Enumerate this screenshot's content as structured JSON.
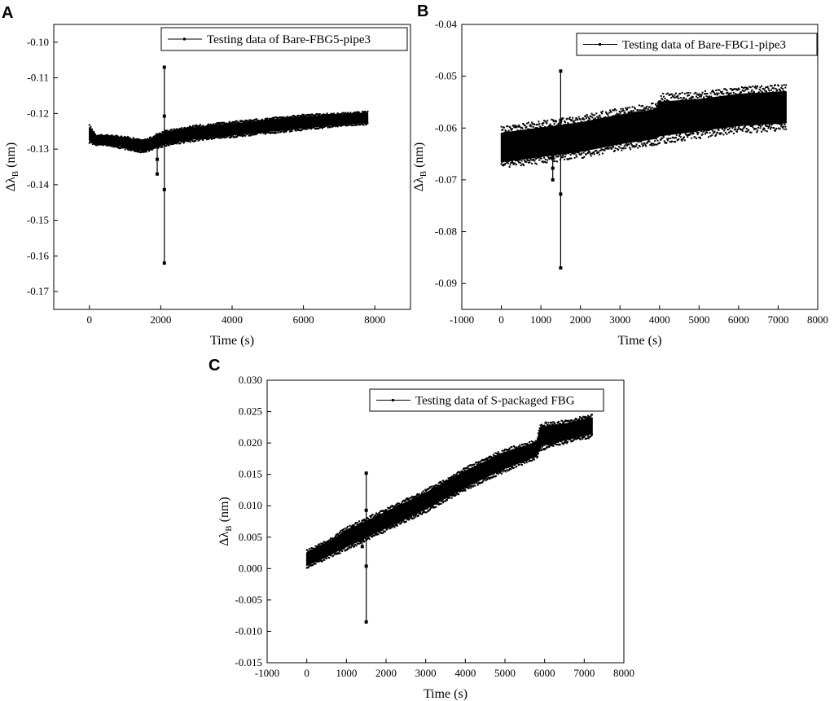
{
  "chart_data": [
    {
      "panel": "A",
      "type": "line",
      "xlabel": "Time (s)",
      "ylabel": "Δλ",
      "ylabel_sub": "B",
      "ylabel_unit": " (nm)",
      "xlim": [
        -1000,
        9000
      ],
      "ylim": [
        -0.175,
        -0.095
      ],
      "xticks": [
        0,
        2000,
        4000,
        6000,
        8000
      ],
      "yticks": [
        -0.17,
        -0.16,
        -0.15,
        -0.14,
        -0.13,
        -0.12,
        -0.11,
        -0.1
      ],
      "ytick_labels": [
        "-0.17",
        "-0.16",
        "-0.15",
        "-0.14",
        "-0.13",
        "-0.12",
        "-0.11",
        "-0.10"
      ],
      "legend_position": "top-right",
      "series": [
        {
          "name": "Testing data of Bare-FBG5-pipe3",
          "band": {
            "x": [
              0,
              200,
              500,
              1000,
              1500,
              1800,
              2100,
              3000,
              4000,
              5000,
              6000,
              7000,
              7800
            ],
            "low": [
              -0.1275,
              -0.1285,
              -0.1285,
              -0.1295,
              -0.1305,
              -0.1295,
              -0.1285,
              -0.127,
              -0.126,
              -0.125,
              -0.124,
              -0.123,
              -0.1225
            ],
            "high": [
              -0.124,
              -0.1265,
              -0.1265,
              -0.127,
              -0.128,
              -0.127,
              -0.1255,
              -0.124,
              -0.123,
              -0.122,
              -0.121,
              -0.1205,
              -0.12
            ]
          },
          "spikes": [
            {
              "x": 2100,
              "ymin": -0.162,
              "ymax": -0.107
            },
            {
              "x": 1900,
              "ymin": -0.137,
              "ymax": -0.126
            }
          ]
        }
      ]
    },
    {
      "panel": "B",
      "type": "line",
      "xlabel": "Time (s)",
      "ylabel": "Δλ",
      "ylabel_sub": "B",
      "ylabel_unit": " (nm)",
      "xlim": [
        -1000,
        8000
      ],
      "ylim": [
        -0.095,
        -0.04
      ],
      "xticks": [
        -1000,
        0,
        1000,
        2000,
        3000,
        4000,
        5000,
        6000,
        7000,
        8000
      ],
      "yticks": [
        -0.09,
        -0.08,
        -0.07,
        -0.06,
        -0.05,
        -0.04
      ],
      "ytick_labels": [
        "-0.09",
        "-0.08",
        "-0.07",
        "-0.06",
        "-0.05",
        "-0.04"
      ],
      "legend_position": "top-right",
      "series": [
        {
          "name": "Testing data of Bare-FBG1-pipe3",
          "band": {
            "x": [
              0,
              1000,
              2000,
              3000,
              3900,
              4000,
              5000,
              6000,
              7200
            ],
            "low": [
              -0.0665,
              -0.0655,
              -0.0645,
              -0.063,
              -0.062,
              -0.0615,
              -0.0605,
              -0.0595,
              -0.059
            ],
            "high": [
              -0.061,
              -0.06,
              -0.059,
              -0.0575,
              -0.0565,
              -0.055,
              -0.0545,
              -0.0535,
              -0.053
            ]
          },
          "spikes": [
            {
              "x": 1500,
              "ymin": -0.087,
              "ymax": -0.049
            },
            {
              "x": 1300,
              "ymin": -0.07,
              "ymax": -0.064
            }
          ]
        }
      ]
    },
    {
      "panel": "C",
      "type": "line",
      "xlabel": "Time (s)",
      "ylabel": "Δλ",
      "ylabel_sub": "B",
      "ylabel_unit": " (nm)",
      "xlim": [
        -1000,
        8000
      ],
      "ylim": [
        -0.015,
        0.03
      ],
      "xticks": [
        -1000,
        0,
        1000,
        2000,
        3000,
        4000,
        5000,
        6000,
        7000,
        8000
      ],
      "yticks": [
        -0.015,
        -0.01,
        -0.005,
        0,
        0.005,
        0.01,
        0.015,
        0.02,
        0.025,
        0.03
      ],
      "ytick_labels": [
        "-0.015",
        "-0.010",
        "-0.005",
        "0.000",
        "0.005",
        "0.010",
        "0.015",
        "0.020",
        "0.025",
        "0.030"
      ],
      "legend_position": "top-right",
      "series": [
        {
          "name": "Testing data of S-packaged FBG",
          "band": {
            "x": [
              0,
              500,
              1000,
              1500,
              2000,
              3000,
              4000,
              5000,
              5800,
              5900,
              6500,
              7200
            ],
            "low": [
              0.0005,
              0.002,
              0.0035,
              0.005,
              0.0065,
              0.0095,
              0.013,
              0.016,
              0.018,
              0.0195,
              0.0205,
              0.0215
            ],
            "high": [
              0.0025,
              0.004,
              0.006,
              0.0075,
              0.009,
              0.012,
              0.0155,
              0.0185,
              0.02,
              0.0225,
              0.023,
              0.024
            ]
          },
          "spikes": [
            {
              "x": 1500,
              "ymin": -0.0085,
              "ymax": 0.0152
            },
            {
              "x": 1400,
              "ymin": 0.0035,
              "ymax": 0.0065
            }
          ]
        }
      ]
    }
  ]
}
